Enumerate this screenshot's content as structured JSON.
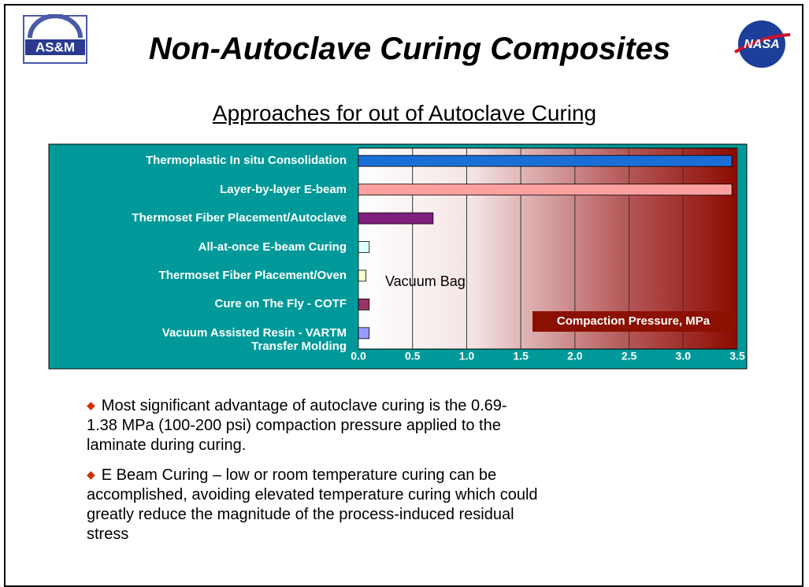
{
  "header": {
    "title": "Non-Autoclave Curing Composites",
    "logo_left": "AS&M",
    "logo_right": "NASA",
    "subtitle": "Approaches  for out of Autoclave Curing"
  },
  "chart_data": {
    "type": "bar",
    "orientation": "horizontal",
    "categories": [
      "Thermoplastic In situ Consolidation",
      "Layer-by-layer E-beam",
      "Thermoset Fiber Placement/Autoclave",
      "All-at-once E-beam Curing",
      "Thermoset Fiber Placement/Oven",
      "Cure on The Fly - COTF",
      "Vacuum Assisted Resin -  VARTM\nTransfer Molding"
    ],
    "values": [
      3.45,
      3.45,
      0.69,
      0.1,
      0.07,
      0.1,
      0.1
    ],
    "colors": [
      "#1a6fd6",
      "#ffa0a0",
      "#7f1f7f",
      "#e0ffff",
      "#ffffcc",
      "#993366",
      "#9999ff"
    ],
    "xlim": [
      0,
      3.5
    ],
    "xticks": [
      {
        "value": 0,
        "label": "0.0"
      },
      0.5,
      {
        "value": 1,
        "label": "1.0"
      },
      1.5,
      {
        "value": 2,
        "label": "2.0"
      },
      2.5,
      {
        "value": 3,
        "label": "3.0"
      },
      3.5
    ],
    "xlabel": "Compaction Pressure, MPa",
    "annotations": [
      "Vacuum Bag"
    ],
    "grid": true
  },
  "bullets": [
    "Most significant advantage of autoclave curing is the 0.69-\n1.38 MPa (100-200 psi) compaction pressure applied to the\nlaminate during curing.",
    "E Beam Curing – low or room temperature curing can be\naccomplished, avoiding elevated temperature curing which could\ngreatly reduce the magnitude of the process-induced residual\nstress"
  ]
}
